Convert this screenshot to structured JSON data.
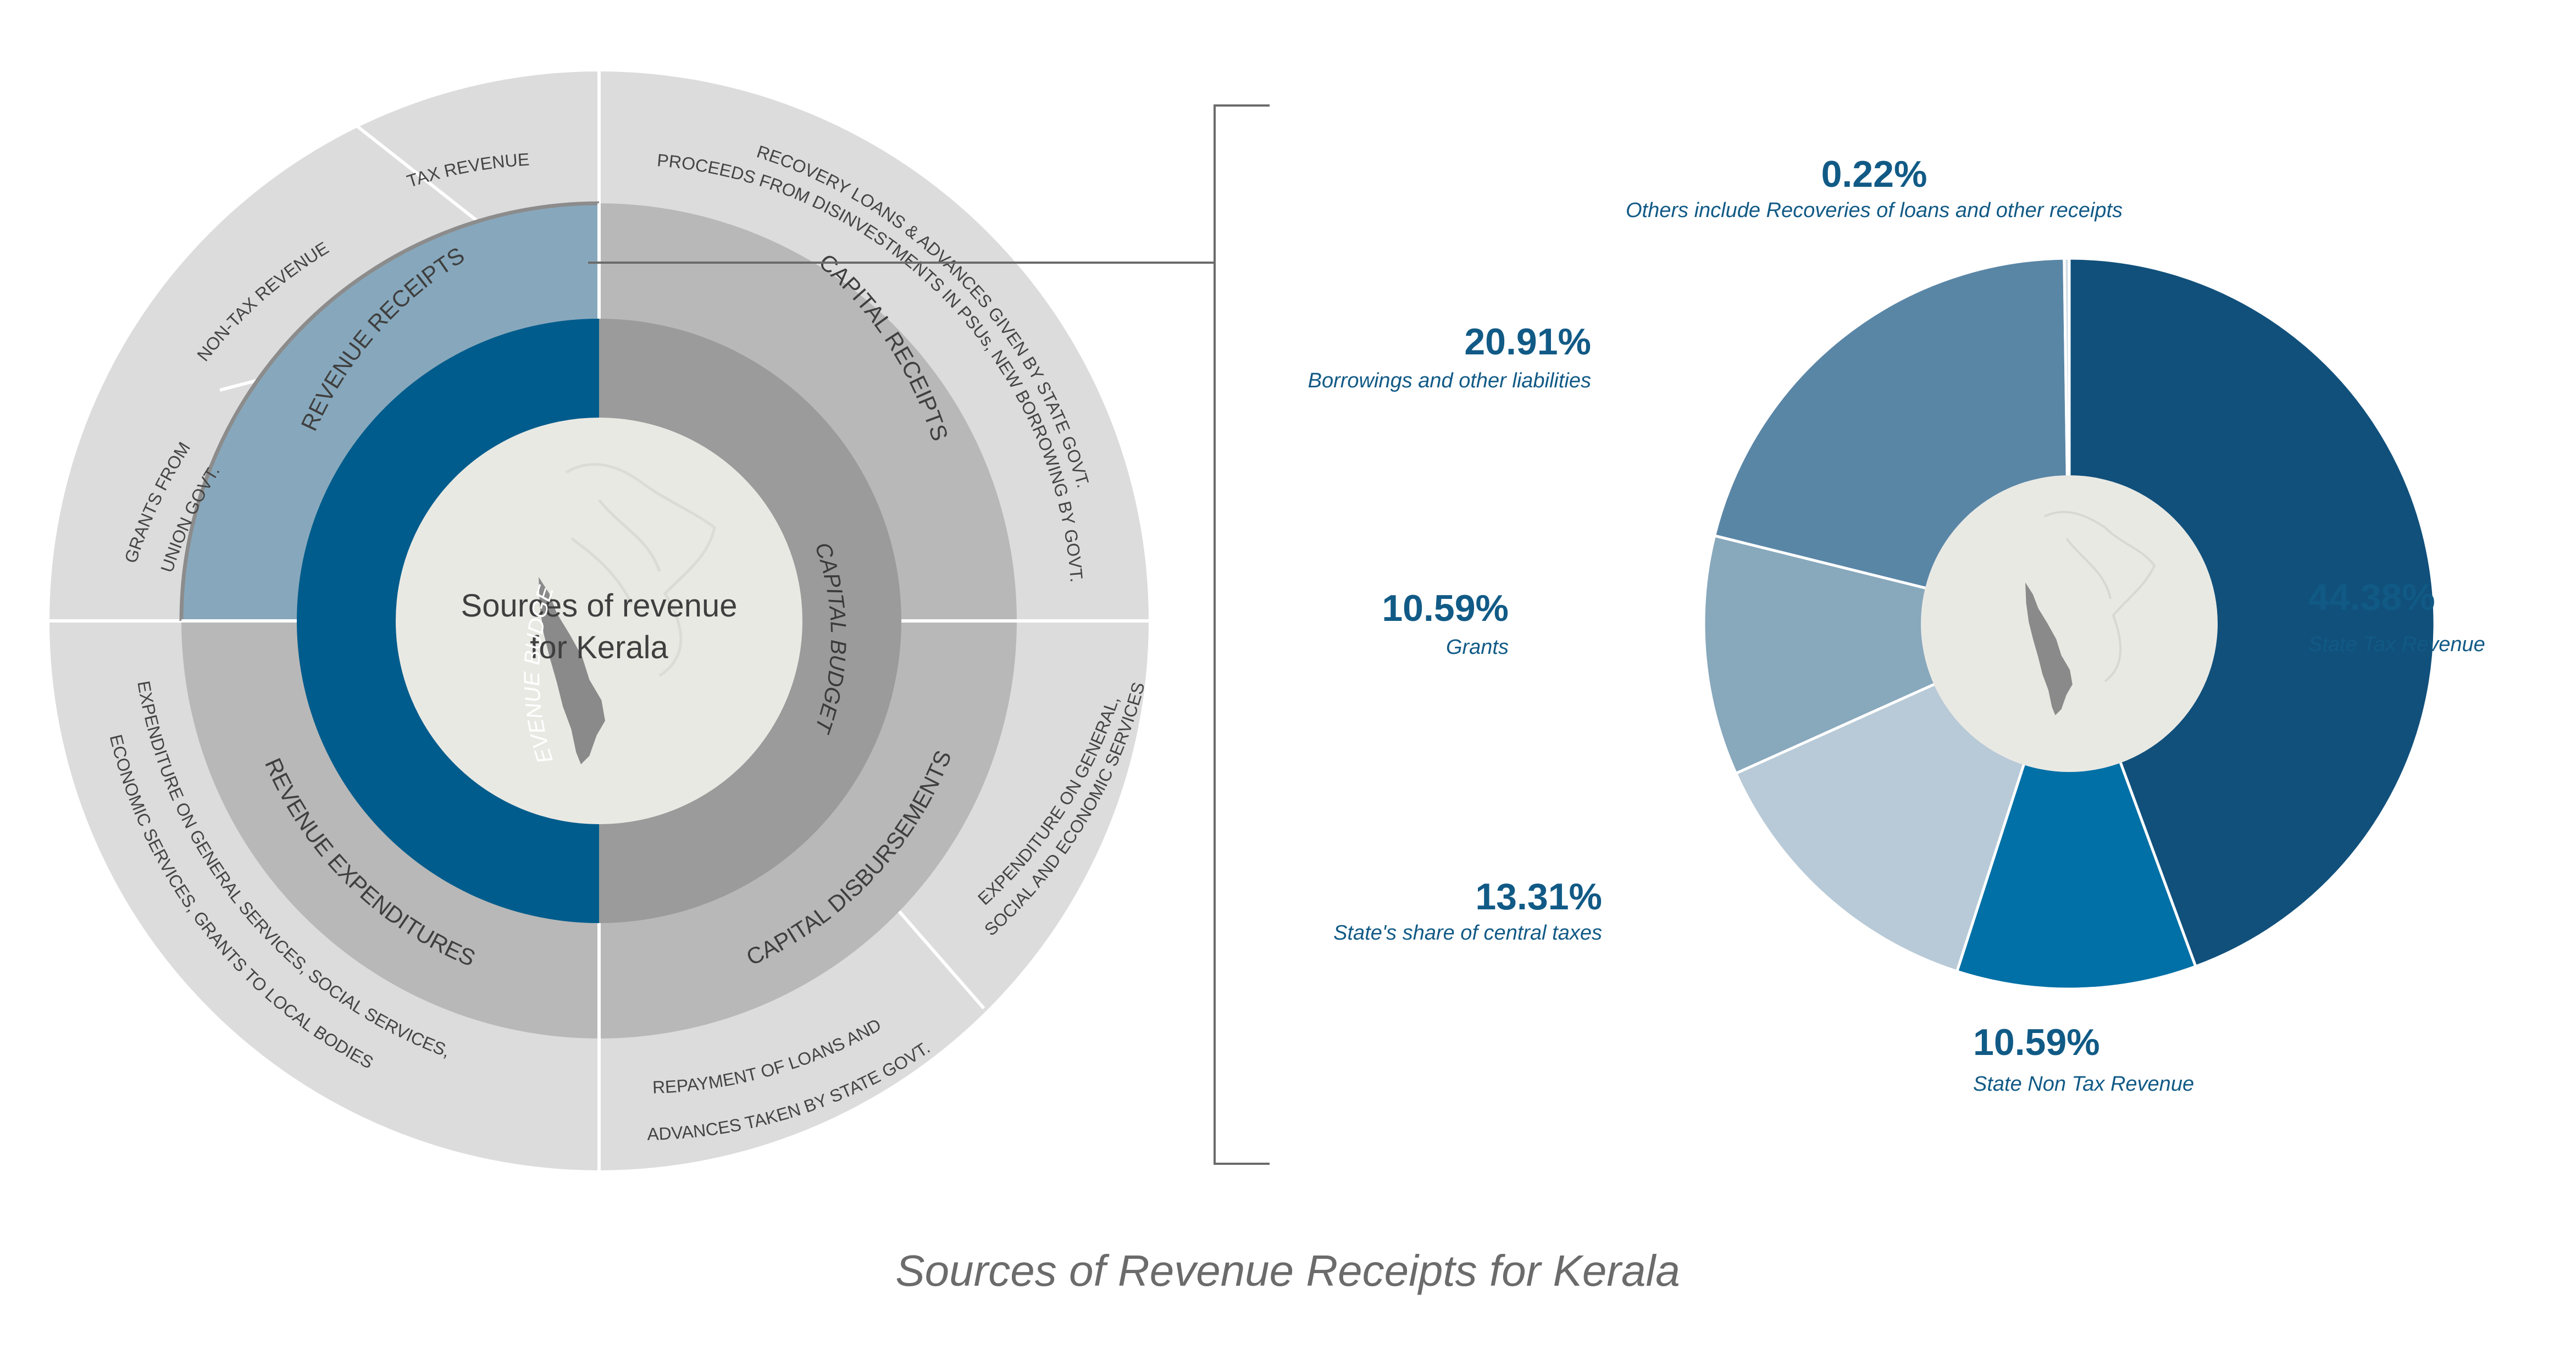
{
  "title": "Sources of Revenue Receipts for Kerala",
  "center_label": [
    "Sources of revenue",
    "for Kerala"
  ],
  "colors": {
    "revenue_budget": "#005c8c",
    "capital_budget": "#9b9b9b",
    "revenue_receipts": "#87a8bc",
    "other_middle": "#b8b8b8",
    "outer_ring": "#dcdcdc",
    "center": "#e9e9e4",
    "map": "#8a8a8a"
  },
  "budget_ring": [
    {
      "label": "REVENUE  BUDGET"
    },
    {
      "label": "CAPITAL  BUDGET"
    }
  ],
  "middle_ring": [
    {
      "label": "REVENUE RECEIPTS"
    },
    {
      "label": "CAPITAL RECEIPTS"
    },
    {
      "label": "CAPITAL  DISBURSEMENTS"
    },
    {
      "label": "REVENUE  EXPENDITURES"
    }
  ],
  "outer_ring": [
    {
      "lines": [
        "TAX REVENUE"
      ]
    },
    {
      "lines": [
        "NON-TAX REVENUE"
      ]
    },
    {
      "lines": [
        "GRANTS FROM",
        "UNION GOVT."
      ]
    },
    {
      "lines": [
        "RECOVERY LOANS & ADVANCES GIVEN BY STATE GOVT.",
        "PROCEEDS FROM DISINVESTMENTS IN PSUs,  NEW BORROWING BY GOVT."
      ]
    },
    {
      "lines": [
        "EXPENDITURE ON GENERAL,",
        "SOCIAL AND ECONOMIC SERVICES"
      ]
    },
    {
      "lines": [
        "REPAYMENT OF LOANS AND",
        "ADVANCES TAKEN BY STATE GOVT."
      ]
    },
    {
      "lines": [
        "EXPENDITURE ON GENERAL SERVICES, SOCIAL SERVICES,",
        "ECONOMIC SERVICES, GRANTS TO LOCAL BODIES"
      ]
    }
  ],
  "chart_data": {
    "type": "pie",
    "title": "Sources of Revenue Receipts for Kerala",
    "unit": "%",
    "slices": [
      {
        "name": "State Tax Revenue",
        "value": 44.38,
        "display": "44.38%",
        "color": "#11507b"
      },
      {
        "name": "State Non Tax Revenue",
        "value": 10.59,
        "display": "10.59%",
        "color": "#0070a6"
      },
      {
        "name": "State's share of central taxes",
        "value": 13.31,
        "display": "13.31%",
        "color": "#b8cad7"
      },
      {
        "name": "Grants",
        "value": 10.59,
        "display": "10.59%",
        "color": "#88a8bc"
      },
      {
        "name": "Borrowings and other liabilities",
        "value": 20.91,
        "display": "20.91%",
        "color": "#5a86a6"
      },
      {
        "name": "Others include Recoveries of loans and other receipts",
        "value": 0.22,
        "display": "0.22%",
        "color": "#d3dde5"
      }
    ]
  }
}
